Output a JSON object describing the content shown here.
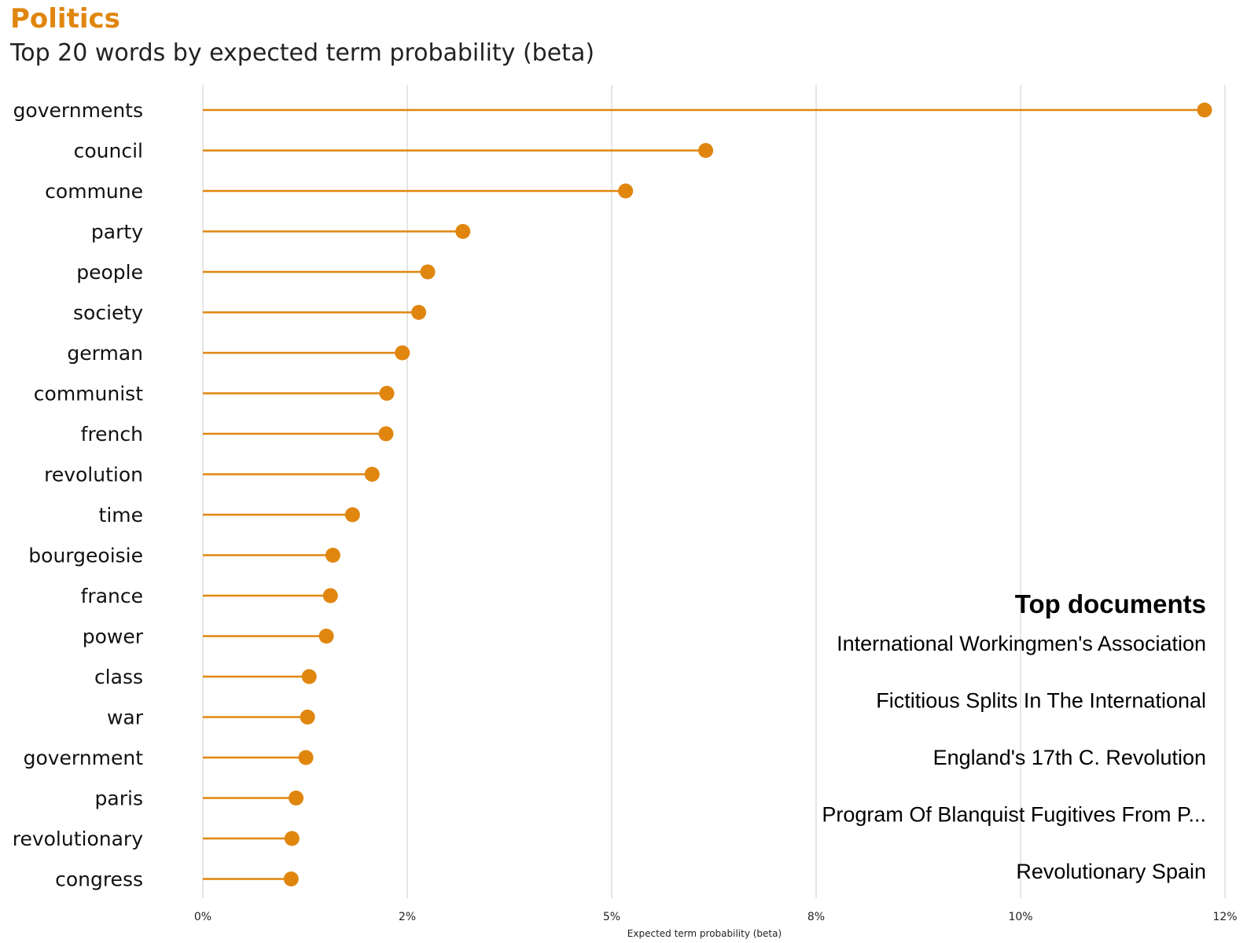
{
  "title": "Politics",
  "subtitle": "Top 20 words by expected term probability (beta)",
  "accent_color": "#E0860F",
  "chart_data": {
    "type": "lollipop",
    "title": "Politics",
    "subtitle": "Top 20 words by expected term probability (beta)",
    "xlabel": "Expected term probability (beta)",
    "xlim": [
      0,
      12.5
    ],
    "x_ticks": [
      "0%",
      "2%",
      "5%",
      "8%",
      "10%",
      "12%"
    ],
    "categories": [
      "governments",
      "council",
      "commune",
      "party",
      "people",
      "society",
      "german",
      "communist",
      "french",
      "revolution",
      "time",
      "bourgeoisie",
      "france",
      "power",
      "class",
      "war",
      "government",
      "paris",
      "revolutionary",
      "congress"
    ],
    "values": [
      12.25,
      6.15,
      5.17,
      3.18,
      2.75,
      2.64,
      2.44,
      2.25,
      2.24,
      2.07,
      1.83,
      1.59,
      1.56,
      1.51,
      1.3,
      1.28,
      1.26,
      1.14,
      1.09,
      1.08
    ],
    "grid": true
  },
  "top_documents": {
    "heading": "Top documents",
    "items": [
      "International Workingmen's Association",
      "Fictitious Splits In The International",
      "England's 17th C. Revolution",
      "Program Of Blanquist Fugitives From P...",
      "Revolutionary Spain"
    ]
  }
}
